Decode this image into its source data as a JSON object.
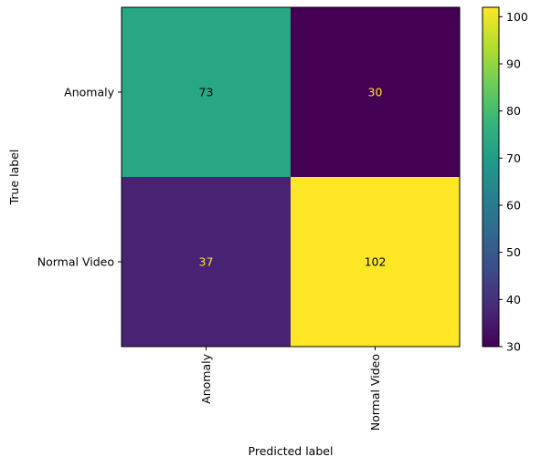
{
  "chart_data": {
    "type": "heatmap",
    "title": "",
    "xlabel": "Predicted label",
    "ylabel": "True label",
    "x_categories": [
      "Anomaly",
      "Normal Video"
    ],
    "y_categories": [
      "Anomaly",
      "Normal Video"
    ],
    "matrix": [
      [
        73,
        30
      ],
      [
        37,
        102
      ]
    ],
    "colormap": "viridis",
    "colorbar": {
      "range": [
        30,
        102
      ],
      "ticks": [
        30,
        40,
        50,
        60,
        70,
        80,
        90,
        100
      ]
    },
    "grid": false
  }
}
